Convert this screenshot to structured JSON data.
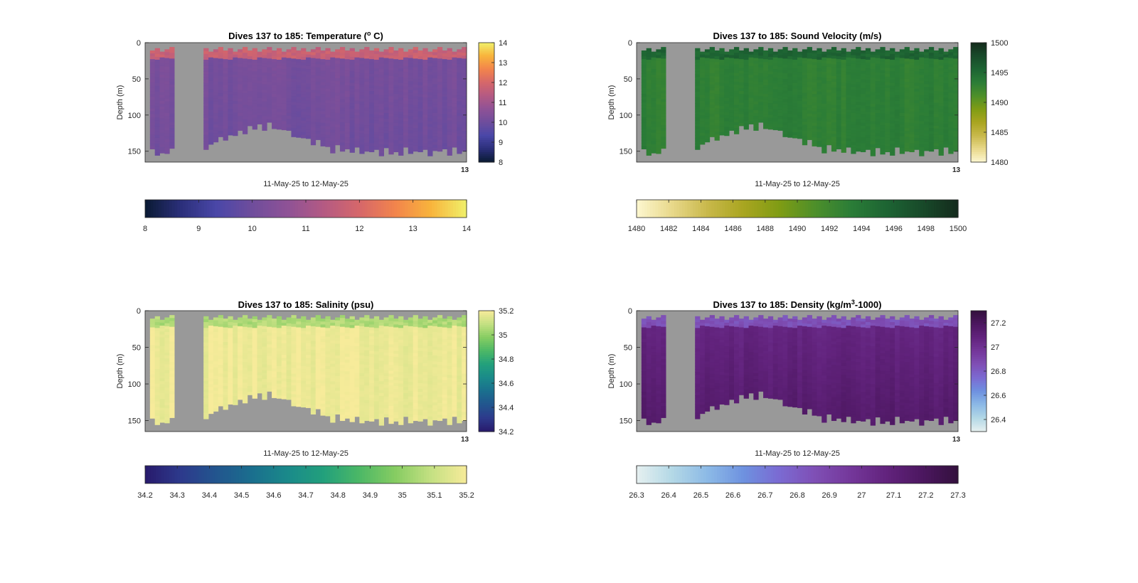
{
  "figure": {
    "background": "#ffffff"
  },
  "chart_data": [
    {
      "type": "heatmap",
      "title": "Dives 137 to 185: Temperature (",
      "title_sup": "o",
      "title_suffix": " C)",
      "xlabel": "11-May-25 to 12-May-25",
      "ylabel": "Depth (m)",
      "x_tick_label": "13",
      "ylim": [
        0,
        165
      ],
      "yticks": [
        0,
        50,
        100,
        150
      ],
      "colorbar_range": [
        8,
        14
      ],
      "colorbar_ticks": [
        8,
        9,
        10,
        11,
        12,
        13,
        14
      ],
      "h_colorbar_ticks": [
        "8",
        "9",
        "10",
        "11",
        "12",
        "13",
        "14"
      ],
      "v_colorbar_ticks": [
        "8",
        "9",
        "10",
        "11",
        "12",
        "13",
        "14"
      ],
      "colormap": [
        "#0a1a33",
        "#2b2f7a",
        "#4a47a8",
        "#6f4d9c",
        "#8f5296",
        "#b45a83",
        "#d6676a",
        "#f2844c",
        "#f8b43c",
        "#f0f06a"
      ],
      "colormap_name": "thermal",
      "surface_value": 11.7,
      "interior_value": 10.2,
      "deep_value": 10.0
    },
    {
      "type": "heatmap",
      "title": "Dives 137 to 185: Sound Velocity (m/s)",
      "xlabel": "11-May-25 to 12-May-25",
      "ylabel": "Depth (m)",
      "x_tick_label": "13",
      "ylim": [
        0,
        165
      ],
      "yticks": [
        0,
        50,
        100,
        150
      ],
      "colorbar_range": [
        1480,
        1500
      ],
      "colorbar_ticks": [
        1480,
        1482,
        1484,
        1486,
        1488,
        1490,
        1492,
        1494,
        1496,
        1498,
        1500
      ],
      "h_colorbar_ticks": [
        "1480",
        "1482",
        "1484",
        "1486",
        "1488",
        "1490",
        "1492",
        "1494",
        "1496",
        "1498",
        "1500"
      ],
      "v_colorbar_ticks": [
        "1480",
        "1485",
        "1490",
        "1495",
        "1500"
      ],
      "colormap": [
        "#fdf7d0",
        "#e8d88a",
        "#c8b84a",
        "#a9a520",
        "#7f9c14",
        "#4d8f2a",
        "#2b7d37",
        "#1d6433",
        "#184a2a",
        "#142b1c"
      ],
      "colormap_name": "speed",
      "surface_value": 1495.5,
      "interior_value": 1493.0,
      "deep_value": 1493.2
    },
    {
      "type": "heatmap",
      "title": "Dives 137 to 185: Salinity (psu)",
      "xlabel": "11-May-25 to 12-May-25",
      "ylabel": "Depth (m)",
      "x_tick_label": "13",
      "ylim": [
        0,
        165
      ],
      "yticks": [
        0,
        50,
        100,
        150
      ],
      "colorbar_range": [
        34.2,
        35.2
      ],
      "colorbar_ticks": [
        34.2,
        34.3,
        34.4,
        34.5,
        34.6,
        34.7,
        34.8,
        34.9,
        35.0,
        35.1,
        35.2
      ],
      "h_colorbar_ticks": [
        "34.2",
        "34.3",
        "34.4",
        "34.5",
        "34.6",
        "34.7",
        "34.8",
        "34.9",
        "35",
        "35.1",
        "35.2"
      ],
      "v_colorbar_ticks": [
        "34.2",
        "34.4",
        "34.6",
        "34.8",
        "35",
        "35.2"
      ],
      "colormap": [
        "#281a6c",
        "#2d3a8c",
        "#22558e",
        "#1a6f8e",
        "#1a8a8a",
        "#22a07c",
        "#4cb866",
        "#86cc62",
        "#c4e082",
        "#f7eb9a"
      ],
      "colormap_name": "haline",
      "surface_value": 35.05,
      "interior_value": 35.18,
      "deep_value": 35.18
    },
    {
      "type": "heatmap",
      "title": "Dives 137 to 185: Density (kg/m",
      "title_sup": "3",
      "title_suffix": "-1000)",
      "xlabel": "11-May-25 to 12-May-25",
      "ylabel": "Depth (m)",
      "x_tick_label": "13",
      "ylim": [
        0,
        165
      ],
      "yticks": [
        0,
        50,
        100,
        150
      ],
      "colorbar_range": [
        26.3,
        27.3
      ],
      "colorbar_ticks": [
        26.3,
        26.4,
        26.5,
        26.6,
        26.7,
        26.8,
        26.9,
        27.0,
        27.1,
        27.2,
        27.3
      ],
      "h_colorbar_ticks": [
        "26.3",
        "26.4",
        "26.5",
        "26.6",
        "26.7",
        "26.8",
        "26.9",
        "27",
        "27.1",
        "27.2",
        "27.3"
      ],
      "v_colorbar_ticks": [
        "26.4",
        "26.6",
        "26.8",
        "27",
        "27.2"
      ],
      "colormap": [
        "#e6f0f0",
        "#b3d8e6",
        "#8cb9e6",
        "#6e91e0",
        "#7b6ad2",
        "#7f4fb5",
        "#74379a",
        "#62237d",
        "#4c1760",
        "#33103d"
      ],
      "colormap_name": "dense",
      "surface_value": 26.85,
      "interior_value": 27.05,
      "deep_value": 27.15
    }
  ]
}
